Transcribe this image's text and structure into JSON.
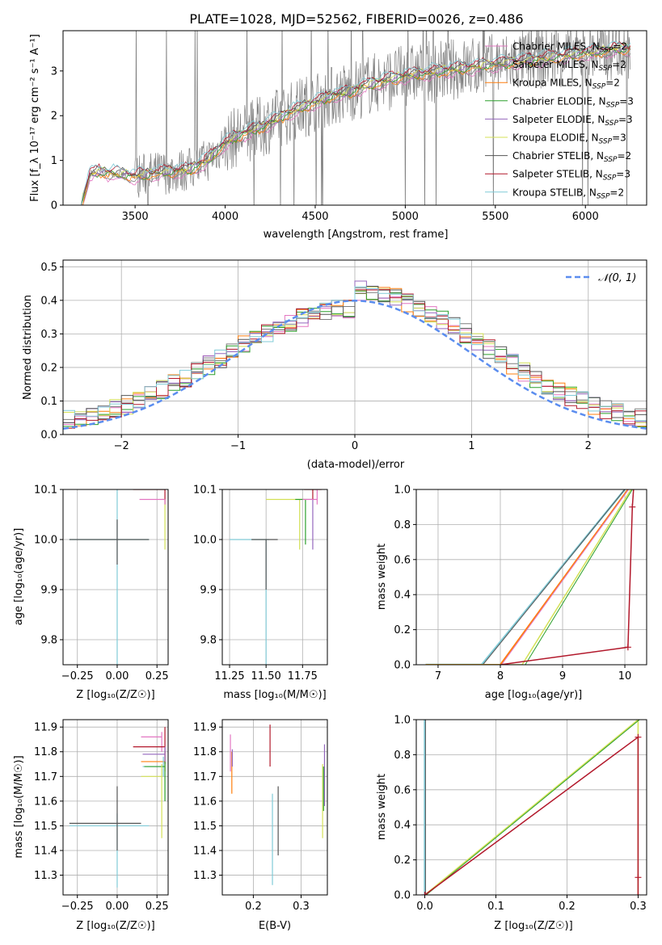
{
  "title": "PLATE=1028, MJD=52562, FIBERID=0026, z=0.486",
  "colors": {
    "chabrier_miles": "#e377c2",
    "salpeter_miles": "#7f7f7f",
    "kroupa_miles": "#ff7f0e",
    "chabrier_elodie": "#2ca02c",
    "salpeter_elodie": "#9467bd",
    "kroupa_elodie": "#d4e157",
    "chabrier_stelib": "#555555",
    "salpeter_stelib": "#b2182b",
    "kroupa_stelib": "#80cbd7",
    "normal": "#5b8def",
    "data": "#808080"
  },
  "chart_data": [
    {
      "id": "spectrum",
      "type": "line",
      "xlabel": "wavelength [Angstrom, rest frame]",
      "ylabel": "Flux [f_λ 10⁻¹⁷ erg cm⁻² s⁻¹ A⁻¹]",
      "xlim": [
        3100,
        6340
      ],
      "ylim": [
        0,
        3.9
      ],
      "xticks": [
        3500,
        4000,
        4500,
        5000,
        5500,
        6000
      ],
      "yticks": [
        0,
        1,
        2,
        3
      ],
      "legend_position": "top-right",
      "legend": [
        "Chabrier MILES, N_SSP=2",
        "Salpeter MILES, N_SSP=2",
        "Kroupa MILES, N_SSP=2",
        "Chabrier ELODIE, N_SSP=3",
        "Salpeter ELODIE, N_SSP=3",
        "Kroupa ELODIE, N_SSP=3",
        "Chabrier STELIB, N_SSP=2",
        "Salpeter STELIB, N_SSP=3",
        "Kroupa STELIB, N_SSP=2"
      ],
      "model_continuum": {
        "x": [
          3200,
          3250,
          3300,
          3400,
          3500,
          3600,
          3700,
          3800,
          3900,
          4000,
          4100,
          4200,
          4300,
          4400,
          4500,
          4600,
          4700,
          4800,
          4900,
          5000,
          5100,
          5200,
          5300,
          5400,
          5500,
          5600,
          5700,
          5800,
          5900,
          6000,
          6100,
          6200
        ],
        "y": [
          0.0,
          0.7,
          0.75,
          0.7,
          0.65,
          0.7,
          0.75,
          0.8,
          1.0,
          1.4,
          1.6,
          1.75,
          1.95,
          2.15,
          2.3,
          2.45,
          2.55,
          2.7,
          2.8,
          2.9,
          2.95,
          3.0,
          3.05,
          3.1,
          3.15,
          3.2,
          3.25,
          3.3,
          3.35,
          3.4,
          3.45,
          3.5
        ]
      }
    },
    {
      "id": "residuals",
      "type": "line",
      "xlabel": "(data-model)/error",
      "ylabel": "Normed distribution",
      "xlim": [
        -2.5,
        2.5
      ],
      "ylim": [
        0,
        0.52
      ],
      "xticks": [
        -2,
        -1,
        0,
        1,
        2
      ],
      "yticks": [
        0.0,
        0.1,
        0.2,
        0.3,
        0.4,
        0.5
      ],
      "legend": [
        "𝒩(0, 1)"
      ],
      "legend_position": "top-right",
      "grid": true
    },
    {
      "id": "age_vs_Z",
      "type": "scatter",
      "xlabel": "Z [log₁₀(Z/Z☉)]",
      "ylabel": "age  [log₁₀(age/yr)]",
      "xlim": [
        -0.34,
        0.32
      ],
      "ylim": [
        9.75,
        10.1
      ],
      "xticks": [
        -0.25,
        0.0,
        0.25
      ],
      "xtick_labels": [
        "−0.25",
        "0.00",
        "0.25"
      ],
      "yticks": [
        9.8,
        9.9,
        10.0,
        10.1
      ],
      "grid": true
    },
    {
      "id": "age_vs_mass",
      "type": "scatter",
      "xlabel": "mass [log₁₀(M/M☉)]",
      "ylabel": "",
      "xlim": [
        11.2,
        11.92
      ],
      "ylim": [
        9.75,
        10.1
      ],
      "xticks": [
        11.25,
        11.5,
        11.75
      ],
      "xtick_labels": [
        "11.25",
        "11.50",
        "11.75"
      ],
      "yticks": [
        9.8,
        9.9,
        10.0,
        10.1
      ],
      "grid": true
    },
    {
      "id": "mass_weight_vs_age",
      "type": "line",
      "xlabel": "age  [log₁₀(age/yr)]",
      "ylabel": "mass weight",
      "xlim": [
        6.65,
        10.35
      ],
      "ylim": [
        0,
        1.0
      ],
      "xticks": [
        7,
        8,
        9,
        10
      ],
      "yticks": [
        0.0,
        0.2,
        0.4,
        0.6,
        0.8,
        1.0
      ],
      "grid": true
    },
    {
      "id": "mass_vs_Z",
      "type": "scatter",
      "xlabel": "Z [log₁₀(Z/Z☉)]",
      "ylabel": "mass [log₁₀(M/M☉)]",
      "xlim": [
        -0.34,
        0.32
      ],
      "ylim": [
        11.22,
        11.93
      ],
      "xticks": [
        -0.25,
        0.0,
        0.25
      ],
      "xtick_labels": [
        "−0.25",
        "0.00",
        "0.25"
      ],
      "yticks": [
        11.3,
        11.4,
        11.5,
        11.6,
        11.7,
        11.8,
        11.9
      ],
      "grid": true
    },
    {
      "id": "mass_vs_ebv",
      "type": "scatter",
      "xlabel": "E(B-V)",
      "ylabel": "",
      "xlim": [
        0.135,
        0.355
      ],
      "ylim": [
        11.22,
        11.93
      ],
      "xticks": [
        0.2,
        0.3
      ],
      "yticks": [
        11.3,
        11.4,
        11.5,
        11.6,
        11.7,
        11.8,
        11.9
      ],
      "grid": true
    },
    {
      "id": "mass_weight_vs_Z",
      "type": "line",
      "xlabel": "Z [log₁₀(Z/Z☉)]",
      "ylabel": "mass weight",
      "xlim": [
        -0.012,
        0.312
      ],
      "ylim": [
        0,
        1.0
      ],
      "xticks": [
        0.0,
        0.1,
        0.2,
        0.3
      ],
      "yticks": [
        0.0,
        0.2,
        0.4,
        0.6,
        0.8,
        1.0
      ],
      "grid": true
    }
  ]
}
